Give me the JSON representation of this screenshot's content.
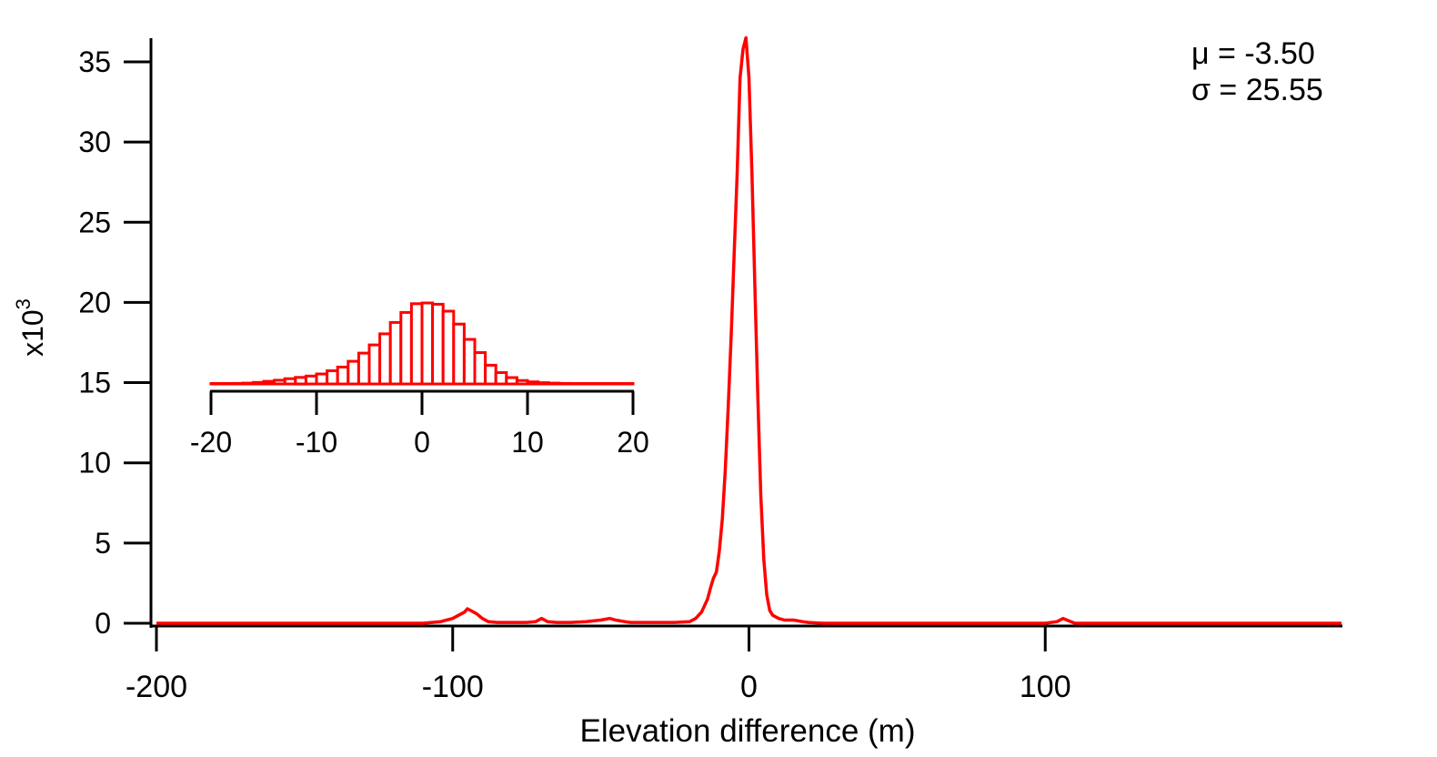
{
  "chart_data": [
    {
      "type": "line",
      "xlabel": "Elevation difference (m)",
      "ylabel": "x10",
      "ylabel_exp": "3",
      "xlim": [
        -200,
        200
      ],
      "ylim": [
        -1,
        36.5
      ],
      "xticks": [
        -200,
        -100,
        0,
        100
      ],
      "xtick_labels": [
        "-200",
        "-100",
        "0",
        "100"
      ],
      "yticks": [
        0,
        5,
        10,
        15,
        20,
        25,
        30,
        35
      ],
      "ytick_labels": [
        "0",
        "5",
        "10",
        "15",
        "20",
        "25",
        "30",
        "35"
      ],
      "annotations": [
        "μ = -3.50",
        "σ = 25.55"
      ],
      "color": "#ff0000",
      "series": [
        {
          "x": [
            -200,
            -110,
            -104,
            -100,
            -98,
            -96,
            -95,
            -94,
            -92,
            -90,
            -88,
            -85,
            -80,
            -75,
            -72,
            -70,
            -68,
            -65,
            -60,
            -55,
            -50,
            -47,
            -45,
            -42,
            -40,
            -35,
            -30,
            -25,
            -20,
            -18,
            -16,
            -14,
            -13,
            -12,
            -11,
            -10,
            -9,
            -8,
            -7,
            -6,
            -5,
            -4,
            -3,
            -2,
            -1,
            0,
            1,
            2,
            3,
            4,
            5,
            6,
            7,
            8,
            9,
            10,
            12,
            15,
            18,
            20,
            25,
            30,
            35,
            40,
            60,
            80,
            100,
            104,
            106,
            108,
            110,
            130,
            160,
            200
          ],
          "y": [
            0,
            0,
            0.1,
            0.3,
            0.5,
            0.7,
            0.9,
            0.8,
            0.6,
            0.3,
            0.1,
            0.05,
            0.05,
            0.05,
            0.1,
            0.3,
            0.1,
            0.05,
            0.05,
            0.1,
            0.2,
            0.3,
            0.2,
            0.1,
            0.05,
            0.05,
            0.05,
            0.05,
            0.1,
            0.3,
            0.7,
            1.5,
            2.2,
            2.8,
            3.2,
            4.5,
            6.5,
            9.5,
            13.5,
            18,
            23,
            28,
            34,
            35.8,
            36.5,
            34,
            28,
            21,
            14,
            8,
            4,
            1.8,
            0.8,
            0.5,
            0.4,
            0.3,
            0.2,
            0.2,
            0.1,
            0.05,
            0,
            0,
            0,
            0,
            0,
            0,
            0,
            0.1,
            0.3,
            0.15,
            0,
            0,
            0,
            0
          ]
        }
      ]
    },
    {
      "type": "bar",
      "inset": true,
      "xlim": [
        -20,
        20
      ],
      "xticks": [
        -20,
        -10,
        0,
        10,
        20
      ],
      "xtick_labels": [
        "-20",
        "-10",
        "0",
        "10",
        "20"
      ],
      "bin_width": 1,
      "color": "#ff0000",
      "x": [
        -20,
        -19,
        -18,
        -17,
        -16,
        -15,
        -14,
        -13,
        -12,
        -11,
        -10,
        -9,
        -8,
        -7,
        -6,
        -5,
        -4,
        -3,
        -2,
        -1,
        0,
        1,
        2,
        3,
        4,
        5,
        6,
        7,
        8,
        9,
        10,
        11,
        12,
        13,
        14,
        15,
        16,
        17,
        18,
        19
      ],
      "values": [
        0.1,
        0.1,
        0.2,
        0.3,
        0.6,
        1.0,
        1.4,
        2.0,
        2.5,
        3.0,
        3.8,
        5.0,
        6.4,
        8.6,
        11.7,
        14.8,
        19.0,
        23.3,
        27.1,
        30.4,
        30.7,
        30.2,
        27.6,
        22.7,
        16.9,
        11.9,
        7.1,
        4.3,
        2.4,
        1.3,
        0.8,
        0.5,
        0.3,
        0.2,
        0.1,
        0.1,
        0.1,
        0.05,
        0.05,
        0.05
      ]
    }
  ]
}
